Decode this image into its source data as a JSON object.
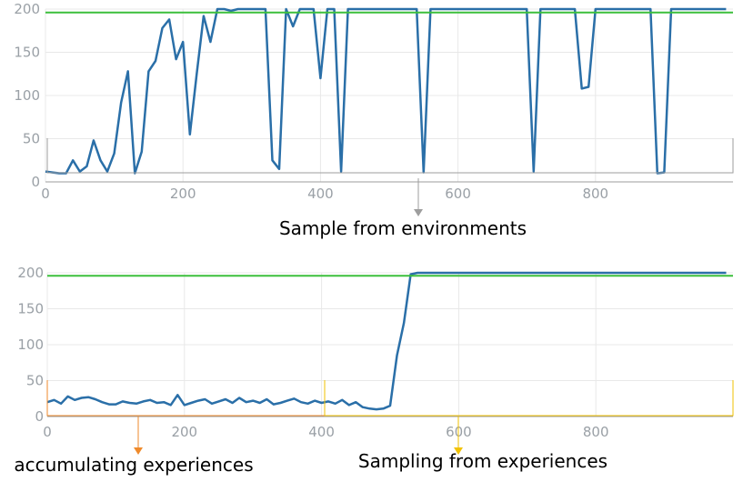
{
  "colors": {
    "series": "#2a6fa8",
    "reference": "#3cbf3c",
    "grid": "#e8e8e8",
    "axis": "#9e9e9e",
    "tick_text": "#9aa0a6",
    "arrow_gray": "#9e9e9e",
    "arrow_orange": "#ef8a2b",
    "arrow_yellow": "#f2c200",
    "box_orange": "#ef8a2b",
    "box_yellow": "#f2c200"
  },
  "annotations": {
    "top_caption": "Sample from environments",
    "bottom_left_caption": "accumulating experiences",
    "bottom_right_caption": "Sampling from experiences"
  },
  "chart_data": [
    {
      "type": "line",
      "xlim": [
        0,
        1000
      ],
      "ylim": [
        0,
        200
      ],
      "xticks": [
        0,
        200,
        400,
        600,
        800
      ],
      "yticks": [
        0,
        50,
        100,
        150,
        200
      ],
      "grid": true,
      "series": [
        {
          "role": "reward",
          "color": "#2a6fa8",
          "x": [
            0,
            10,
            20,
            30,
            40,
            50,
            60,
            70,
            80,
            90,
            100,
            110,
            120,
            130,
            140,
            150,
            160,
            170,
            180,
            190,
            200,
            210,
            220,
            230,
            240,
            250,
            260,
            270,
            280,
            290,
            300,
            310,
            320,
            330,
            340,
            350,
            360,
            370,
            380,
            390,
            400,
            410,
            420,
            430,
            440,
            450,
            460,
            470,
            480,
            490,
            500,
            510,
            520,
            530,
            540,
            550,
            560,
            570,
            580,
            590,
            600,
            610,
            620,
            630,
            640,
            650,
            660,
            670,
            680,
            690,
            700,
            710,
            720,
            730,
            740,
            750,
            760,
            770,
            780,
            790,
            800,
            810,
            820,
            830,
            840,
            850,
            860,
            870,
            880,
            890,
            900,
            910,
            920,
            930,
            940,
            950,
            960,
            970,
            980,
            990
          ],
          "y": [
            12,
            11,
            10,
            10,
            25,
            12,
            18,
            48,
            25,
            12,
            33,
            92,
            128,
            10,
            35,
            128,
            140,
            178,
            188,
            142,
            162,
            55,
            125,
            192,
            162,
            200,
            200,
            198,
            200,
            200,
            200,
            200,
            200,
            25,
            15,
            200,
            180,
            200,
            200,
            200,
            120,
            200,
            200,
            12,
            200,
            200,
            200,
            200,
            200,
            200,
            200,
            200,
            200,
            200,
            200,
            11,
            200,
            200,
            200,
            200,
            200,
            200,
            200,
            200,
            200,
            200,
            200,
            200,
            200,
            200,
            200,
            12,
            200,
            200,
            200,
            200,
            200,
            200,
            108,
            110,
            200,
            200,
            200,
            200,
            200,
            200,
            200,
            200,
            200,
            10,
            11,
            200,
            200,
            200,
            200,
            200,
            200,
            200,
            200,
            200
          ]
        },
        {
          "role": "target",
          "color": "#3cbf3c",
          "x": [
            0,
            1000
          ],
          "y": [
            196,
            196
          ]
        }
      ]
    },
    {
      "type": "line",
      "xlim": [
        0,
        1000
      ],
      "ylim": [
        0,
        200
      ],
      "xticks": [
        0,
        200,
        400,
        600,
        800
      ],
      "yticks": [
        0,
        50,
        100,
        150,
        200
      ],
      "grid": true,
      "series": [
        {
          "role": "reward",
          "color": "#2a6fa8",
          "x": [
            0,
            10,
            20,
            30,
            40,
            50,
            60,
            70,
            80,
            90,
            100,
            110,
            120,
            130,
            140,
            150,
            160,
            170,
            180,
            190,
            200,
            210,
            220,
            230,
            240,
            250,
            260,
            270,
            280,
            290,
            300,
            310,
            320,
            330,
            340,
            350,
            360,
            370,
            380,
            390,
            400,
            410,
            420,
            430,
            440,
            450,
            460,
            470,
            480,
            490,
            500,
            510,
            520,
            530,
            540,
            550,
            560,
            570,
            580,
            590,
            600,
            610,
            620,
            630,
            640,
            650,
            660,
            670,
            680,
            690,
            700,
            710,
            720,
            730,
            740,
            750,
            760,
            770,
            780,
            790,
            800,
            810,
            820,
            830,
            840,
            850,
            860,
            870,
            880,
            890,
            900,
            910,
            920,
            930,
            940,
            950,
            960,
            970,
            980,
            990
          ],
          "y": [
            20,
            23,
            18,
            28,
            23,
            26,
            27,
            24,
            20,
            17,
            17,
            21,
            19,
            18,
            21,
            23,
            19,
            20,
            16,
            30,
            16,
            19,
            22,
            24,
            18,
            21,
            24,
            19,
            26,
            20,
            22,
            19,
            24,
            17,
            19,
            22,
            25,
            20,
            18,
            22,
            19,
            21,
            18,
            23,
            16,
            20,
            13,
            11,
            10,
            11,
            15,
            85,
            130,
            198,
            200,
            200,
            200,
            200,
            200,
            200,
            200,
            200,
            200,
            200,
            200,
            200,
            200,
            200,
            200,
            200,
            200,
            200,
            200,
            200,
            200,
            200,
            200,
            200,
            200,
            200,
            200,
            200,
            200,
            200,
            200,
            200,
            200,
            200,
            200,
            200,
            200,
            200,
            200,
            200,
            200,
            200,
            200,
            200,
            200,
            200
          ]
        },
        {
          "role": "target",
          "color": "#3cbf3c",
          "x": [
            0,
            1000
          ],
          "y": [
            196,
            196
          ]
        }
      ]
    }
  ]
}
